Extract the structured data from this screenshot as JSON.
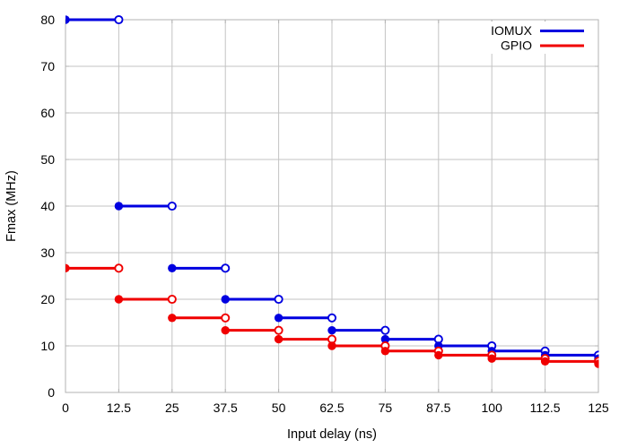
{
  "figure": {
    "background": "#ffffff"
  },
  "chart_data": {
    "type": "step",
    "title": "",
    "xlabel": "Input delay (ns)",
    "ylabel": "Fmax (MHz)",
    "xlim": [
      0,
      125
    ],
    "ylim": [
      0,
      80
    ],
    "grid": true,
    "x_ticks": [
      0,
      12.5,
      25,
      37.5,
      50,
      62.5,
      75,
      87.5,
      100,
      112.5,
      125
    ],
    "x_tick_labels": [
      "0",
      "12.5",
      "25",
      "37.5",
      "50",
      "62.5",
      "75",
      "87.5",
      "100",
      "112.5",
      "125"
    ],
    "y_ticks": [
      0,
      10,
      20,
      30,
      40,
      50,
      60,
      70,
      80
    ],
    "y_tick_labels": [
      "0",
      "10",
      "20",
      "30",
      "40",
      "50",
      "60",
      "70",
      "80"
    ],
    "x_boundaries": [
      0,
      12.5,
      25,
      37.5,
      50,
      62.5,
      75,
      87.5,
      100,
      112.5,
      125
    ],
    "series": [
      {
        "name": "IOMUX",
        "color": "#0000e0",
        "values": [
          80,
          40,
          26.67,
          20,
          16,
          13.33,
          11.43,
          10,
          8.89,
          8
        ],
        "value_after_last_boundary": 7.27,
        "marker_step_start": "filled-circle",
        "marker_step_end": "open-circle"
      },
      {
        "name": "GPIO",
        "color": "#f00000",
        "values": [
          26.67,
          20,
          16,
          13.33,
          11.43,
          10,
          8.89,
          8,
          7.27,
          6.67
        ],
        "value_after_last_boundary": 6.15,
        "marker_step_start": "filled-circle",
        "marker_step_end": "open-circle"
      }
    ],
    "legend": {
      "position": "top-right",
      "opaque": true,
      "entries": [
        "IOMUX",
        "GPIO"
      ]
    },
    "style": {
      "grid_color": "#c3c3c3",
      "border_color": "#b3b3b3",
      "tick_label_color": "#000000",
      "background": "#ffffff"
    }
  }
}
